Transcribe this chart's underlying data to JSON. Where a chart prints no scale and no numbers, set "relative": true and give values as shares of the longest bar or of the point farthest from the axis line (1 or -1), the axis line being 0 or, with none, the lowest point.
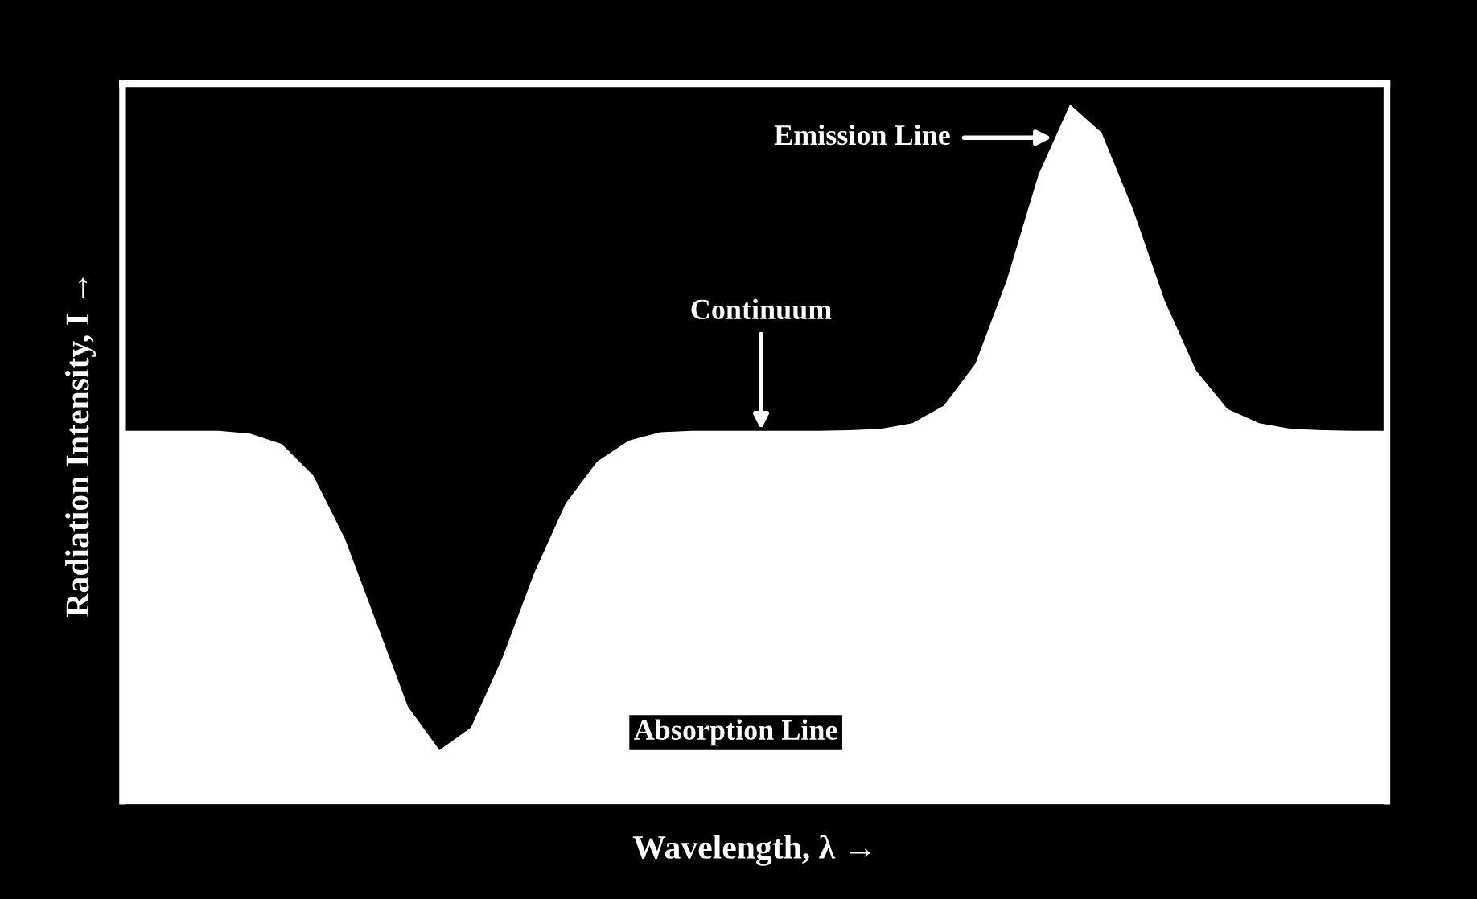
{
  "chart_data": {
    "type": "area",
    "relative": true,
    "xlabel": "Wavelength, λ →",
    "ylabel": "Radiation Intensity, I →",
    "color": "#ffffff",
    "categories": [
      null,
      null,
      null,
      null,
      null,
      null,
      null,
      null,
      null,
      null,
      null,
      null,
      null,
      null,
      null,
      null,
      null,
      null,
      null,
      null,
      null,
      null,
      null,
      null,
      null,
      null,
      null,
      null,
      null,
      null,
      null,
      null,
      null,
      null,
      null,
      null,
      null,
      null,
      null,
      null,
      null
    ],
    "values": [
      0.534,
      0.534,
      0.534,
      0.534,
      0.53,
      0.515,
      0.47,
      0.38,
      0.26,
      0.14,
      0.078,
      0.11,
      0.21,
      0.33,
      0.43,
      0.49,
      0.52,
      0.532,
      0.534,
      0.534,
      0.534,
      0.534,
      0.534,
      0.535,
      0.537,
      0.545,
      0.57,
      0.63,
      0.75,
      0.9,
      1.0,
      0.96,
      0.85,
      0.72,
      0.62,
      0.565,
      0.545,
      0.537,
      0.535,
      0.534,
      0.534
    ],
    "annotations": [
      "Emission Line",
      "Continuum",
      "Absorption Line"
    ]
  }
}
